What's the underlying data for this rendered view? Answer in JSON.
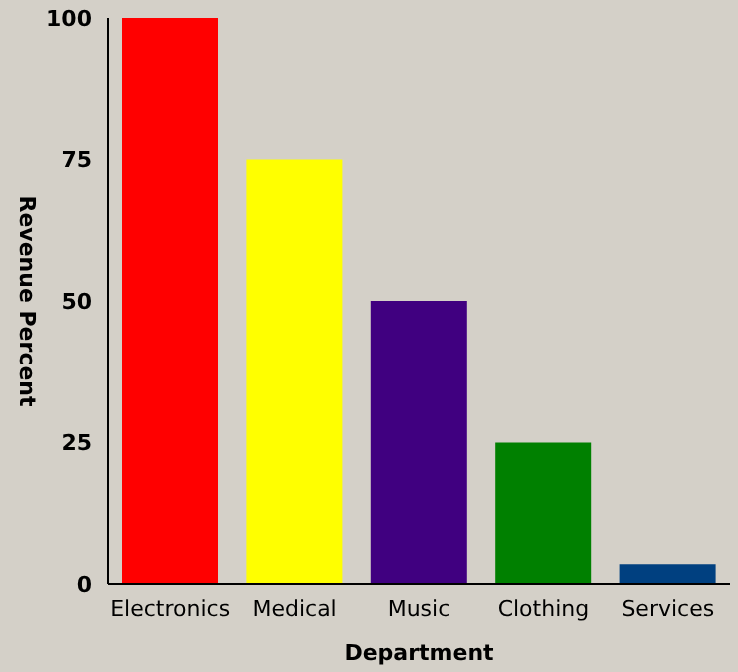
{
  "chart_data": {
    "type": "bar",
    "xlabel": "Department",
    "ylabel": "Revenue Percent",
    "categories": [
      "Electronics",
      "Medical",
      "Music",
      "Clothing",
      "Services"
    ],
    "values": [
      100,
      75,
      50,
      25,
      3.5
    ],
    "colors": [
      "#ff0000",
      "#ffff00",
      "#400080",
      "#008000",
      "#004080"
    ],
    "ylim": [
      0,
      100
    ],
    "yticks": [
      0,
      25,
      50,
      75,
      100
    ],
    "grid": false,
    "legend": false
  }
}
